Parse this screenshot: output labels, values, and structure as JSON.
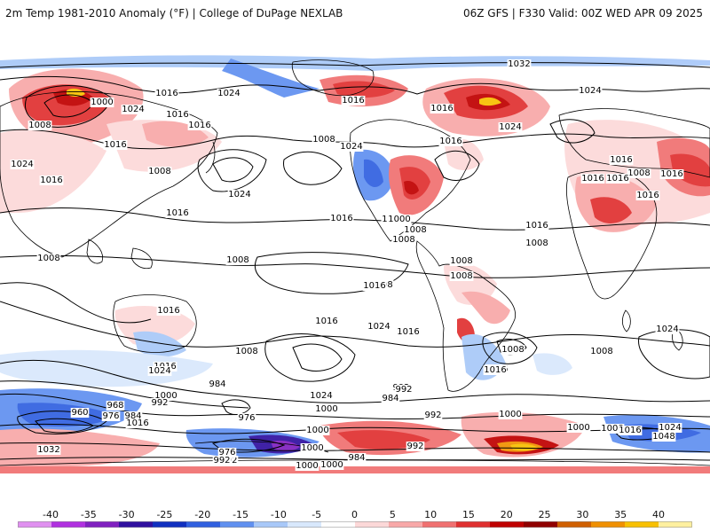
{
  "header": {
    "left_title": "2m Temp 1981-2010 Anomaly (°F) | College of DuPage NEXLAB",
    "right_title": "06Z GFS | F330 Valid: 00Z WED APR 09 2025"
  },
  "map": {
    "isobar_labels": [
      "1032",
      "1024",
      "1016",
      "1016",
      "1008",
      "1024",
      "1016",
      "1016",
      "1000",
      "1008",
      "1024",
      "1016",
      "1008",
      "1016",
      "1016",
      "1024",
      "1024",
      "1016",
      "1016",
      "1016",
      "1008",
      "1024",
      "1024",
      "1016",
      "1016",
      "1008",
      "1016",
      "1016",
      "1016",
      "1016",
      "1016",
      "1008",
      "1000",
      "1008",
      "1008",
      "1008",
      "1008",
      "1008",
      "1008",
      "1016",
      "1008",
      "1016",
      "1016",
      "1024",
      "1016",
      "1016",
      "1008",
      "1024",
      "1008",
      "1024",
      "984",
      "992",
      "968",
      "960",
      "976",
      "984",
      "1008",
      "1000",
      "992",
      "1016",
      "1032",
      "1000",
      "992",
      "1024",
      "984",
      "992",
      "976",
      "1000",
      "1000",
      "1008",
      "1016",
      "1048",
      "1024",
      "1016",
      "1016",
      "1000",
      "992",
      "992",
      "984",
      "1000",
      "1000",
      "976",
      "992",
      "1000"
    ],
    "colors": {
      "land_outline": "#000000",
      "ocean": "#ffffff",
      "isobar": "#000000"
    }
  },
  "colorbar": {
    "ticks": [
      "-40",
      "-35",
      "-30",
      "-25",
      "-20",
      "-15",
      "-10",
      "-5",
      "0",
      "5",
      "10",
      "15",
      "20",
      "25",
      "30",
      "35",
      "40"
    ],
    "colors": [
      "#e090f0",
      "#b030e0",
      "#8020c0",
      "#3010a0",
      "#1030c0",
      "#3060e0",
      "#6090f0",
      "#a8c8f8",
      "#d8e8fc",
      "#ffffff",
      "#fcd8d8",
      "#f8a8a8",
      "#f07070",
      "#e03030",
      "#c00000",
      "#900000",
      "#d06000",
      "#f09000",
      "#f8c000",
      "#fff0a0"
    ]
  }
}
